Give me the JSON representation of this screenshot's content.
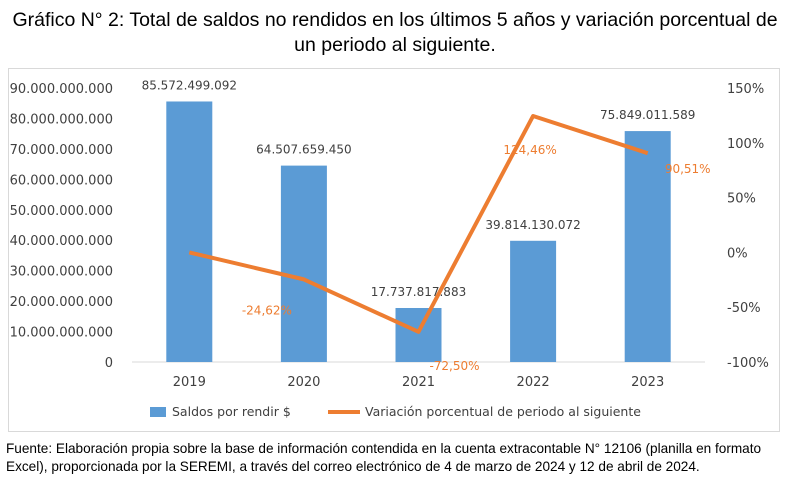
{
  "chart_data": {
    "type": "bar+line",
    "title": "Gráfico N° 2: Total de saldos no rendidos en los últimos 5 años y variación porcentual de un periodo al siguiente.",
    "categories": [
      "2019",
      "2020",
      "2021",
      "2022",
      "2023"
    ],
    "series": [
      {
        "name": "Saldos por rendir $",
        "type": "bar",
        "axis": "left",
        "color": "#5b9bd5",
        "values": [
          85572499092,
          64507659450,
          17737817883,
          39814130072,
          75849011589
        ],
        "labels": [
          "85.572.499.092",
          "64.507.659.450",
          "17.737.817.883",
          "39.814.130.072",
          "75.849.011.589"
        ]
      },
      {
        "name": "Variación porcentual de periodo al siguiente",
        "type": "line",
        "axis": "right",
        "color": "#ed7d31",
        "values": [
          0,
          -24.62,
          -72.5,
          124.46,
          90.51
        ],
        "labels": [
          "",
          "-24,62%",
          "-72,50%",
          "124,46%",
          "90,51%"
        ]
      }
    ],
    "y_left": {
      "ylim": [
        0,
        90000000000
      ],
      "ticks": [
        "0",
        "10.000.000.000",
        "20.000.000.000",
        "30.000.000.000",
        "40.000.000.000",
        "50.000.000.000",
        "60.000.000.000",
        "70.000.000.000",
        "80.000.000.000",
        "90.000.000.000"
      ]
    },
    "y_right": {
      "ylim": [
        -100,
        150
      ],
      "ticks": [
        "-100%",
        "-50%",
        "0%",
        "50%",
        "100%",
        "150%"
      ]
    },
    "grid": false,
    "legend": "bottom"
  },
  "footer": "Fuente: Elaboración propia sobre la base de información contendida en la cuenta extracontable N° 12106 (planilla en formato Excel), proporcionada por la SEREMI, a través del correo electrónico de 4 de marzo de 2024 y 12 de abril de 2024."
}
